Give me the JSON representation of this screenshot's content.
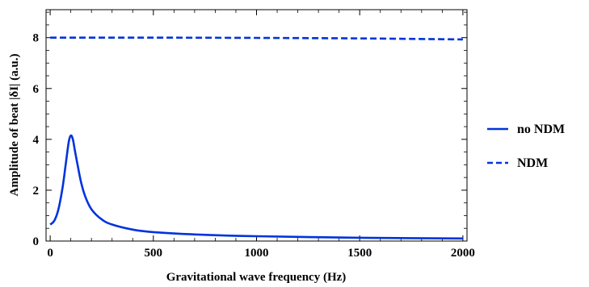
{
  "chart_data": {
    "type": "line",
    "xlabel": "Gravitational wave frequency (Hz)",
    "ylabel": "Amplitude of beat |δI| (a.u.)",
    "xlim": [
      -20,
      2020
    ],
    "ylim": [
      0,
      9.1
    ],
    "xticks": [
      0,
      500,
      1000,
      1500,
      2000
    ],
    "yticks": [
      0,
      2,
      4,
      6,
      8
    ],
    "grid": false,
    "legend_position": "right",
    "series": [
      {
        "name": "no NDM",
        "style": "solid",
        "color": "#0033dd",
        "x": [
          0,
          20,
          40,
          60,
          75,
          90,
          100,
          110,
          120,
          135,
          150,
          170,
          200,
          250,
          300,
          400,
          500,
          700,
          1000,
          1500,
          2000
        ],
        "y": [
          0.65,
          0.8,
          1.25,
          2.1,
          3.0,
          3.9,
          4.15,
          4.0,
          3.55,
          2.9,
          2.3,
          1.75,
          1.25,
          0.85,
          0.65,
          0.45,
          0.35,
          0.26,
          0.19,
          0.13,
          0.1
        ]
      },
      {
        "name": "NDM",
        "style": "dashed",
        "color": "#0033dd",
        "x": [
          0,
          500,
          1000,
          1500,
          2000
        ],
        "y": [
          8.0,
          8.0,
          7.99,
          7.97,
          7.93
        ]
      }
    ]
  }
}
